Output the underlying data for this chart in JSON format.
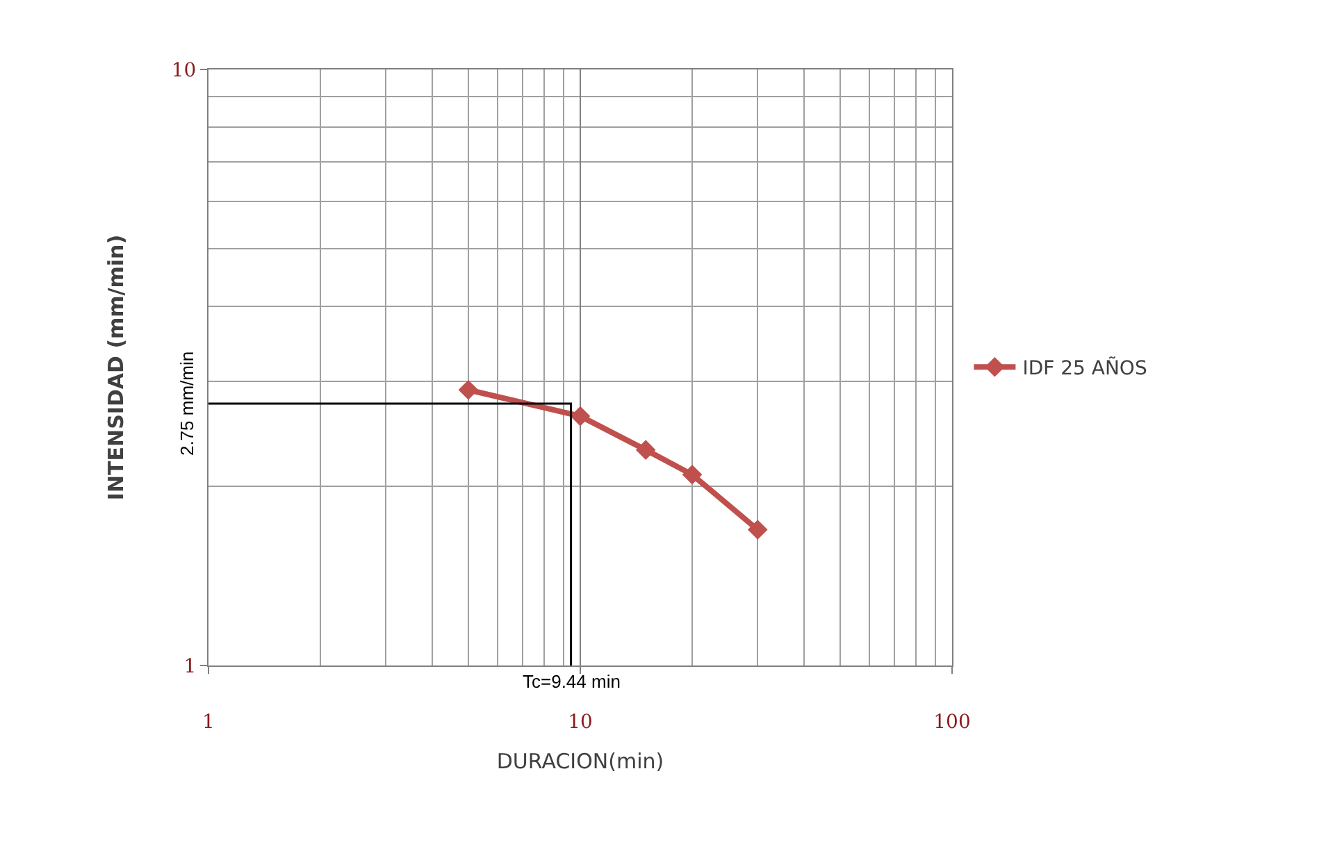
{
  "chart_data": {
    "type": "line",
    "xlabel": "DURACION(min)",
    "ylabel": "INTENSIDAD (mm/min)",
    "log": "xy",
    "xlim": [
      1,
      100
    ],
    "ylim": [
      1,
      10
    ],
    "xticks": [
      1,
      10,
      100
    ],
    "yticks": [
      1,
      10
    ],
    "grid": true,
    "legend": "right",
    "marker": "diamond",
    "line_style": "solid",
    "series": [
      {
        "name": "IDF 25 AÑOS",
        "color": "#c0504d",
        "x": [
          5,
          10,
          15,
          20,
          30
        ],
        "values": [
          2.9,
          2.62,
          2.3,
          2.09,
          1.69
        ]
      },
      {
        "type": "line",
        "color": "#000000",
        "marker": "none",
        "x": [
          1,
          9.44,
          9.44
        ],
        "values": [
          2.75,
          2.75,
          1
        ]
      }
    ],
    "annotations": [
      {
        "text": "2.75 mm/min",
        "x": 1,
        "y": 2.75
      },
      {
        "text": "Tc=9.44 min",
        "x": 9.44,
        "y": 1
      }
    ]
  }
}
